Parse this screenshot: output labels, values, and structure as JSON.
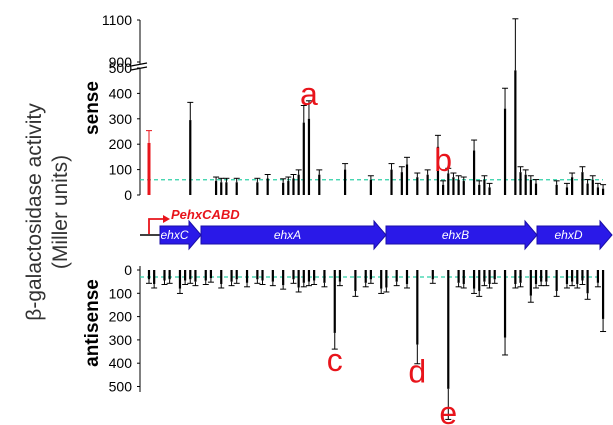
{
  "y_axis_label_line1": "β-galactosidase activity",
  "y_axis_label_line2": "(Miller units)",
  "colors": {
    "bar": "#000000",
    "highlight_bar": "#e8141b",
    "threshold_line": "#2fd1a6",
    "gene_arrow": "#2a19e8",
    "gene_arrow_dark": "#1a0ea8",
    "annotation": "#e8141b"
  },
  "chart_data": [
    {
      "type": "bar",
      "panel": "sense",
      "title": "",
      "ylabel": "sense",
      "y_ticks_lower": [
        "0",
        "50",
        "100",
        "150",
        "200",
        "250",
        "300",
        "350",
        "400",
        "450",
        "500"
      ],
      "y_ticks_upper": [
        "900",
        "1100"
      ],
      "y_tick_labels_shown": [
        "0",
        "100",
        "200",
        "300",
        "400",
        "500",
        "900",
        "1100"
      ],
      "broken_axis": true,
      "ylim": [
        0,
        1100
      ],
      "threshold": 60,
      "grid": false,
      "legend": "none",
      "x_positions": [
        1,
        9,
        14,
        15,
        16,
        18,
        22,
        24,
        27,
        28,
        29,
        30,
        31,
        32,
        34,
        39,
        44,
        48,
        50,
        51,
        53,
        55,
        57,
        58,
        59,
        60,
        61,
        62,
        64,
        65,
        66,
        67,
        70,
        72,
        73,
        74,
        75,
        76,
        80,
        82,
        83,
        85,
        86,
        87,
        88,
        89
      ],
      "values": [
        205,
        295,
        55,
        50,
        50,
        50,
        50,
        65,
        48,
        55,
        65,
        80,
        285,
        300,
        80,
        100,
        60,
        100,
        90,
        120,
        70,
        80,
        190,
        40,
        85,
        70,
        60,
        55,
        175,
        40,
        60,
        30,
        340,
        860,
        90,
        80,
        60,
        45,
        40,
        30,
        70,
        90,
        45,
        60,
        30,
        25
      ],
      "highlight_index": 0,
      "annotations": [
        {
          "label": "a",
          "x_position": 32
        },
        {
          "label": "b",
          "x_position": 58
        }
      ]
    },
    {
      "type": "bar",
      "panel": "antisense",
      "title": "",
      "ylabel": "antisense",
      "y_tick_labels_shown": [
        "0",
        "100",
        "200",
        "300",
        "400",
        "500"
      ],
      "inverted": true,
      "ylim": [
        0,
        500
      ],
      "threshold": 30,
      "grid": false,
      "legend": "none",
      "x_positions": [
        1,
        2,
        4,
        5,
        7,
        8,
        9,
        10,
        12,
        13,
        15,
        17,
        18,
        20,
        22,
        23,
        25,
        27,
        29,
        30,
        31,
        32,
        33,
        35,
        37,
        38,
        41,
        43,
        44,
        46,
        47,
        49,
        51,
        53,
        56,
        59,
        61,
        62,
        64,
        65,
        66,
        67,
        68,
        70,
        72,
        73,
        75,
        76,
        77,
        78,
        80,
        82,
        83,
        84,
        85,
        86,
        88,
        89
      ],
      "values": [
        40,
        60,
        45,
        40,
        80,
        45,
        40,
        50,
        45,
        35,
        60,
        50,
        40,
        55,
        40,
        45,
        50,
        65,
        40,
        75,
        55,
        50,
        45,
        55,
        270,
        50,
        90,
        55,
        40,
        80,
        75,
        50,
        60,
        320,
        40,
        510,
        55,
        60,
        80,
        90,
        50,
        60,
        40,
        290,
        60,
        55,
        110,
        60,
        50,
        50,
        90,
        60,
        50,
        60,
        45,
        100,
        55,
        210
      ],
      "annotations": [
        {
          "label": "c",
          "x_position": 37
        },
        {
          "label": "d",
          "x_position": 53
        },
        {
          "label": "e",
          "x_position": 59
        }
      ]
    }
  ],
  "gene_map": {
    "promoter": "PehxCABD",
    "genes": [
      "ehxC",
      "ehxA",
      "ehxB",
      "ehxD"
    ]
  }
}
